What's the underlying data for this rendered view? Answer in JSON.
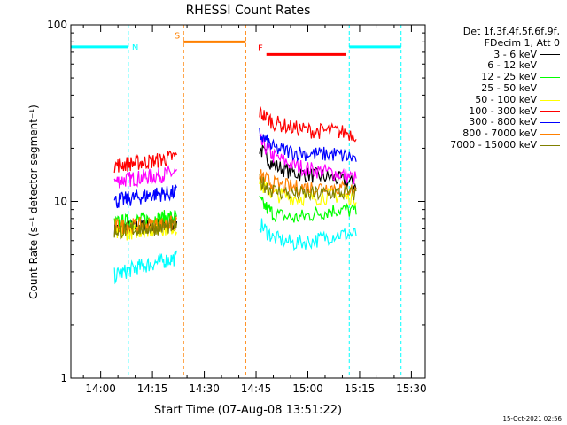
{
  "chart_data": {
    "type": "line",
    "title": "RHESSI Count Rates",
    "xlabel": "Start Time (07-Aug-08 13:51:22)",
    "ylabel": "Count Rate (s⁻¹ detector segment⁻¹)",
    "y_scale": "log",
    "ylim": [
      1,
      100
    ],
    "ytick_labels": [
      "1",
      "10",
      "100"
    ],
    "xlim": [
      "13:51:22",
      "15:34"
    ],
    "xtick_labels": [
      "14:00",
      "14:15",
      "14:30",
      "14:45",
      "15:00",
      "15:15",
      "15:30"
    ],
    "legend_header": [
      "Det 1f,3f,4f,5f,6f,9f,",
      "FDecim 1, Att 0"
    ],
    "legend_placement": "top-right, outside plot",
    "series": [
      {
        "name": "3 - 6 keV",
        "color": "#000000",
        "x": [
          "14:04",
          "14:10",
          "14:16",
          "14:22",
          "14:46",
          "14:50",
          "14:56",
          "15:02",
          "15:08",
          "15:14"
        ],
        "y": [
          7.0,
          7.2,
          7.3,
          7.5,
          20.0,
          16.0,
          14.5,
          14.0,
          13.5,
          12.5
        ]
      },
      {
        "name": "6 - 12 keV",
        "color": "#ff00ff",
        "x": [
          "14:04",
          "14:10",
          "14:16",
          "14:22",
          "14:46",
          "14:50",
          "14:56",
          "15:02",
          "15:08",
          "15:14"
        ],
        "y": [
          13.0,
          13.5,
          14.0,
          14.5,
          22.0,
          18.0,
          16.0,
          15.0,
          14.5,
          13.5
        ]
      },
      {
        "name": "12 - 25 keV",
        "color": "#00ff00",
        "x": [
          "14:04",
          "14:10",
          "14:16",
          "14:22",
          "14:46",
          "14:50",
          "14:56",
          "15:02",
          "15:08",
          "15:14"
        ],
        "y": [
          7.5,
          7.8,
          8.0,
          8.2,
          10.0,
          8.5,
          8.0,
          8.5,
          9.0,
          8.8
        ]
      },
      {
        "name": "25 - 50 keV",
        "color": "#00ffff",
        "x": [
          "14:04",
          "14:10",
          "14:16",
          "14:22",
          "14:46",
          "14:50",
          "14:56",
          "15:02",
          "15:08",
          "15:14"
        ],
        "y": [
          3.8,
          4.2,
          4.5,
          4.8,
          7.5,
          6.2,
          5.8,
          6.0,
          6.5,
          6.5
        ]
      },
      {
        "name": "50 - 100 keV",
        "color": "#ffff00",
        "x": [
          "14:04",
          "14:10",
          "14:16",
          "14:22",
          "14:46",
          "14:50",
          "14:56",
          "15:02",
          "15:08",
          "15:14"
        ],
        "y": [
          6.5,
          6.8,
          7.0,
          7.2,
          12.5,
          11.0,
          10.5,
          10.5,
          10.8,
          10.5
        ]
      },
      {
        "name": "100 - 300 keV",
        "color": "#ff0000",
        "x": [
          "14:04",
          "14:10",
          "14:16",
          "14:22",
          "14:46",
          "14:50",
          "14:56",
          "15:02",
          "15:08",
          "15:14"
        ],
        "y": [
          16.0,
          16.5,
          17.0,
          18.0,
          32.0,
          28.0,
          26.0,
          25.0,
          25.0,
          24.0
        ]
      },
      {
        "name": "300 - 800 keV",
        "color": "#0000ff",
        "x": [
          "14:04",
          "14:10",
          "14:16",
          "14:22",
          "14:46",
          "14:50",
          "14:56",
          "15:02",
          "15:08",
          "15:14"
        ],
        "y": [
          10.0,
          10.5,
          11.0,
          11.2,
          24.0,
          20.0,
          19.0,
          18.5,
          18.5,
          17.5
        ]
      },
      {
        "name": "800 - 7000 keV",
        "color": "#ff8000",
        "x": [
          "14:04",
          "14:10",
          "14:16",
          "14:22",
          "14:46",
          "14:50",
          "14:56",
          "15:02",
          "15:08",
          "15:14"
        ],
        "y": [
          7.2,
          7.3,
          7.4,
          7.5,
          14.0,
          12.5,
          12.0,
          12.0,
          12.0,
          11.5
        ]
      },
      {
        "name": "7000 - 15000 keV",
        "color": "#808000",
        "x": [
          "14:04",
          "14:10",
          "14:16",
          "14:22",
          "14:46",
          "14:50",
          "14:56",
          "15:02",
          "15:08",
          "15:14"
        ],
        "y": [
          6.8,
          7.0,
          7.1,
          7.3,
          13.0,
          11.5,
          11.0,
          11.0,
          11.2,
          11.0
        ]
      }
    ],
    "annotations": [
      {
        "label": "N",
        "kind": "orbit_night",
        "color": "#00ffff",
        "level": 75,
        "spans": [
          [
            "13:51:22",
            "14:08"
          ],
          [
            "15:12",
            "15:27"
          ]
        ],
        "boundaries": [
          "14:08",
          "15:12",
          "15:27"
        ]
      },
      {
        "label": "S",
        "kind": "SAA",
        "color": "#ff8000",
        "level": 80,
        "spans": [
          [
            "14:24",
            "14:42"
          ]
        ],
        "boundaries": [
          "14:24",
          "14:42"
        ]
      },
      {
        "label": "F",
        "kind": "flare",
        "color": "#ff0000",
        "level": 68,
        "spans": [
          [
            "14:48",
            "15:11"
          ]
        ],
        "boundaries": []
      }
    ]
  },
  "footer_timestamp": "15-Oct-2021 02:56"
}
